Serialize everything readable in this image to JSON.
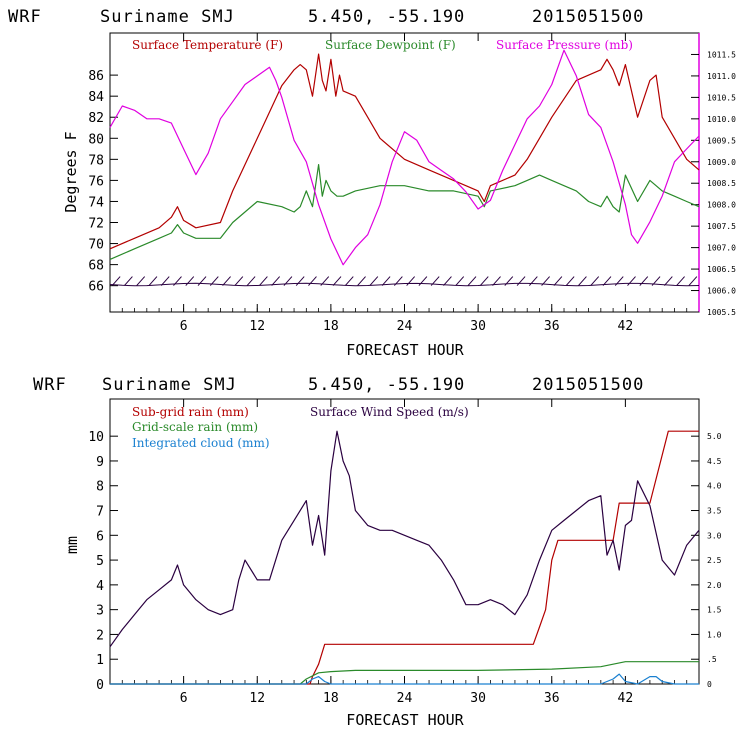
{
  "colors": {
    "temperature": "#b30000",
    "dewpoint": "#2a8a2a",
    "pressure": "#e000e0",
    "subgrid_rain": "#b30000",
    "gridscale_rain": "#2a8a2a",
    "cloud": "#1a80d0",
    "wind": "#2a0040"
  },
  "chart_data": [
    {
      "type": "line",
      "header": {
        "model": "WRF",
        "station": "Suriname SMJ",
        "coords": "5.450, -55.190",
        "date": "2015051500"
      },
      "title": "",
      "xlabel": "FORECAST HOUR",
      "ylabel": "Degrees F",
      "xlim": [
        0,
        48
      ],
      "ylim": [
        63.5,
        90
      ],
      "y2lim": [
        1005.5,
        1012.0
      ],
      "x_ticks": [
        "6",
        "12",
        "18",
        "24",
        "30",
        "36",
        "42"
      ],
      "y_ticks": [
        "66",
        "68",
        "70",
        "72",
        "74",
        "76",
        "78",
        "80",
        "82",
        "84",
        "86"
      ],
      "y2_ticks": [
        "1005.5",
        "1006.0",
        "1006.5",
        "1007.0",
        "1007.5",
        "1008.0",
        "1008.5",
        "1009.0",
        "1009.5",
        "1010.0",
        "1010.5",
        "1011.0",
        "1011.5"
      ],
      "legend": [
        "Surface Temperature (F)",
        "Surface Dewpoint (F)",
        "Surface Pressure (mb)"
      ],
      "series": [
        {
          "name": "Surface Temperature (F)",
          "axis": "left",
          "x": [
            0,
            2,
            4,
            5,
            5.5,
            6,
            7,
            9,
            10,
            12,
            14,
            15,
            15.5,
            16,
            16.5,
            17,
            17.3,
            17.6,
            18,
            18.4,
            18.7,
            19,
            20,
            21,
            22,
            24,
            26,
            28,
            29,
            30,
            30.5,
            31,
            33,
            34,
            35,
            36,
            38,
            40,
            40.5,
            41,
            41.5,
            42,
            43,
            44,
            44.5,
            45,
            46,
            47,
            48
          ],
          "y": [
            69.5,
            70.5,
            71.5,
            72.5,
            73.5,
            72.2,
            71.5,
            72.0,
            75.0,
            80.0,
            85.0,
            86.5,
            87.0,
            86.5,
            84.0,
            88.0,
            85.5,
            84.5,
            87.5,
            84.0,
            86.0,
            84.5,
            84.0,
            82.0,
            80.0,
            78.0,
            77.0,
            76.0,
            75.5,
            75.0,
            74.0,
            75.5,
            76.5,
            78.0,
            80.0,
            82.0,
            85.5,
            86.5,
            87.5,
            86.5,
            85.0,
            87.0,
            82.0,
            85.5,
            86.0,
            82.0,
            80.0,
            78.0,
            77.0
          ]
        },
        {
          "name": "Surface Dewpoint (F)",
          "axis": "left",
          "x": [
            0,
            2,
            4,
            5,
            5.5,
            6,
            7,
            9,
            10,
            12,
            14,
            15,
            15.5,
            16,
            16.5,
            17,
            17.3,
            17.6,
            18,
            18.5,
            19,
            20,
            22,
            24,
            26,
            28,
            30,
            30.5,
            31,
            33,
            34,
            35,
            36,
            37,
            38,
            39,
            40,
            40.5,
            41,
            41.5,
            42,
            43,
            44,
            44.5,
            45,
            46,
            47,
            48
          ],
          "y": [
            68.5,
            69.5,
            70.5,
            71.0,
            71.8,
            71.0,
            70.5,
            70.5,
            72.0,
            74.0,
            73.5,
            73.0,
            73.5,
            75.0,
            73.5,
            77.5,
            74.5,
            76.0,
            75.0,
            74.5,
            74.5,
            75.0,
            75.5,
            75.5,
            75.0,
            75.0,
            74.5,
            73.5,
            75.0,
            75.5,
            76.0,
            76.5,
            76.0,
            75.5,
            75.0,
            74.0,
            73.5,
            74.5,
            73.5,
            73.0,
            76.5,
            74.0,
            76.0,
            75.5,
            75.0,
            74.5,
            74.0,
            73.5
          ]
        },
        {
          "name": "Surface Pressure (mb)",
          "axis": "right",
          "x": [
            0,
            1,
            2,
            3,
            4,
            5,
            6,
            7,
            8,
            9,
            10,
            11,
            12,
            13,
            13.5,
            14,
            15,
            16,
            17,
            18,
            19,
            20,
            21,
            22,
            23,
            24,
            25,
            26,
            27,
            28,
            29,
            30,
            31,
            32,
            33,
            34,
            35,
            36,
            37,
            38,
            39,
            40,
            41,
            42,
            42.5,
            43,
            44,
            45,
            46,
            47,
            48
          ],
          "y": [
            1009.8,
            1010.3,
            1010.2,
            1010.0,
            1010.0,
            1009.9,
            1009.3,
            1008.7,
            1009.2,
            1010.0,
            1010.4,
            1010.8,
            1011.0,
            1011.2,
            1010.9,
            1010.5,
            1009.5,
            1009.0,
            1008.0,
            1007.2,
            1006.6,
            1007.0,
            1007.3,
            1008.0,
            1009.0,
            1009.7,
            1009.5,
            1009.0,
            1008.8,
            1008.6,
            1008.3,
            1007.9,
            1008.1,
            1008.8,
            1009.4,
            1010.0,
            1010.3,
            1010.8,
            1011.6,
            1011.0,
            1010.1,
            1009.8,
            1009.0,
            1008.0,
            1007.3,
            1007.1,
            1007.6,
            1008.2,
            1009.0,
            1009.3,
            1009.6
          ]
        }
      ],
      "wind_barb_row_y": 66.3
    },
    {
      "type": "line",
      "header": {
        "model": "WRF",
        "station": "Suriname SMJ",
        "coords": "5.450, -55.190",
        "date": "2015051500"
      },
      "title": "",
      "xlabel": "FORECAST HOUR",
      "ylabel": "mm",
      "xlim": [
        0,
        48
      ],
      "ylim": [
        0,
        11.5
      ],
      "y2lim": [
        0,
        5.75
      ],
      "x_ticks": [
        "6",
        "12",
        "18",
        "24",
        "30",
        "36",
        "42"
      ],
      "y_ticks": [
        "0",
        "1",
        "2",
        "3",
        "4",
        "5",
        "6",
        "7",
        "8",
        "9",
        "10"
      ],
      "y2_ticks": [
        "0",
        ".5",
        "1.0",
        "1.5",
        "2.0",
        "2.5",
        "3.0",
        "3.5",
        "4.0",
        "4.5",
        "5.0"
      ],
      "legend": [
        "Sub-grid rain (mm)",
        "Surface Wind Speed (m/s)",
        "Grid-scale rain (mm)",
        "Integrated cloud (mm)"
      ],
      "series": [
        {
          "name": "Sub-grid rain (mm)",
          "axis": "left",
          "x": [
            0,
            16.3,
            16.5,
            17.0,
            17.5,
            34.5,
            35.0,
            35.5,
            36.0,
            36.5,
            41.0,
            41.5,
            44.0,
            45.5,
            48
          ],
          "y": [
            0,
            0,
            0.3,
            0.8,
            1.6,
            1.6,
            2.3,
            3.0,
            5.0,
            5.8,
            5.8,
            7.3,
            7.3,
            10.2,
            10.2
          ]
        },
        {
          "name": "Grid-scale rain (mm)",
          "axis": "left",
          "x": [
            0,
            15.5,
            16,
            17,
            18,
            20,
            30,
            36,
            40,
            41,
            42,
            48
          ],
          "y": [
            0,
            0,
            0.2,
            0.45,
            0.5,
            0.55,
            0.55,
            0.6,
            0.7,
            0.8,
            0.9,
            0.9
          ]
        },
        {
          "name": "Integrated cloud (mm)",
          "axis": "left",
          "x": [
            0,
            16,
            16.5,
            17,
            17.5,
            18,
            24,
            40,
            41,
            41.5,
            42,
            43,
            44,
            44.5,
            45,
            46,
            48
          ],
          "y": [
            0,
            0,
            0.2,
            0.3,
            0.1,
            0,
            0,
            0,
            0.2,
            0.4,
            0.1,
            0,
            0.3,
            0.3,
            0.1,
            0,
            0
          ]
        },
        {
          "name": "Surface Wind Speed (m/s)",
          "axis": "right",
          "x": [
            0,
            1,
            2,
            3,
            4,
            5,
            5.5,
            6,
            7,
            8,
            9,
            10,
            10.5,
            11,
            12,
            13,
            14,
            15,
            16,
            16.5,
            17,
            17.5,
            18,
            18.5,
            19,
            19.5,
            20,
            21,
            22,
            23,
            24,
            25,
            26,
            27,
            28,
            29,
            30,
            31,
            32,
            33,
            34,
            35,
            36,
            37,
            38,
            39,
            40,
            40.5,
            41,
            41.5,
            42,
            42.5,
            43,
            44,
            45,
            46,
            47,
            48
          ],
          "y": [
            0.75,
            1.1,
            1.4,
            1.7,
            1.9,
            2.1,
            2.4,
            2.0,
            1.7,
            1.5,
            1.4,
            1.5,
            2.1,
            2.5,
            2.1,
            2.1,
            2.9,
            3.3,
            3.7,
            2.8,
            3.4,
            2.6,
            4.3,
            5.1,
            4.5,
            4.2,
            3.5,
            3.2,
            3.1,
            3.1,
            3.0,
            2.9,
            2.8,
            2.5,
            2.1,
            1.6,
            1.6,
            1.7,
            1.6,
            1.4,
            1.8,
            2.5,
            3.1,
            3.3,
            3.5,
            3.7,
            3.8,
            2.6,
            2.9,
            2.3,
            3.2,
            3.3,
            4.1,
            3.6,
            2.5,
            2.2,
            2.8,
            3.1
          ]
        }
      ]
    }
  ]
}
